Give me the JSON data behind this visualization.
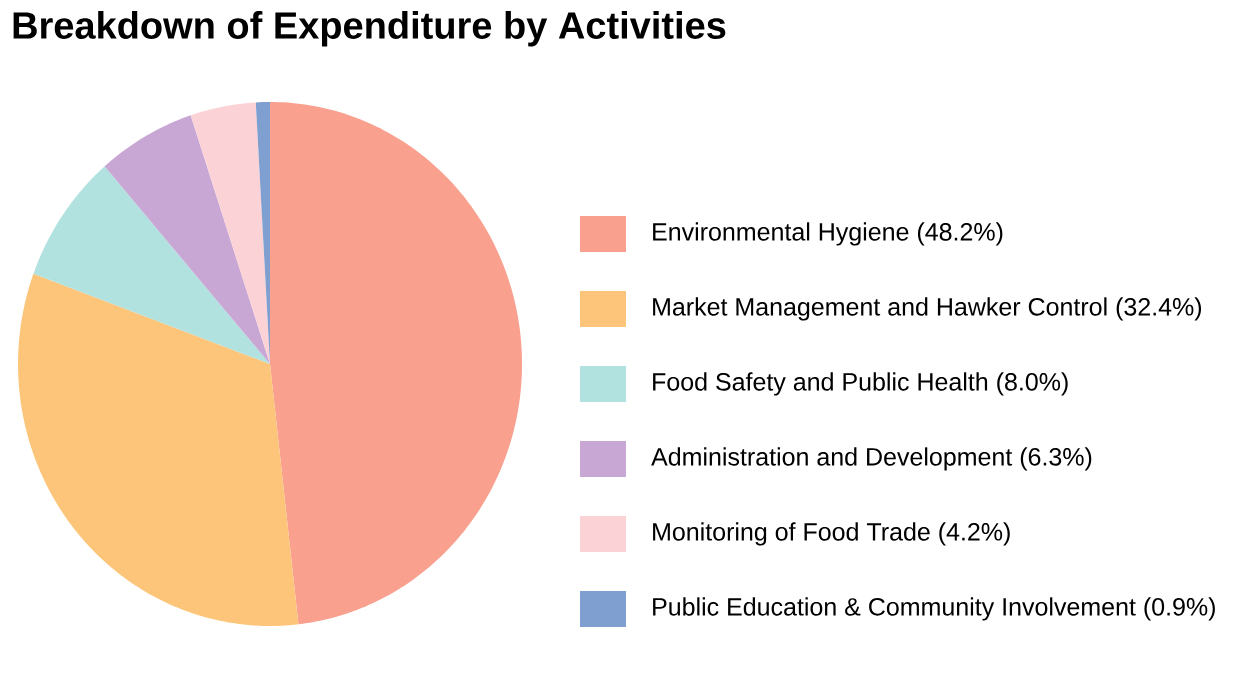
{
  "chart_data": {
    "type": "pie",
    "title": "Breakdown of Expenditure by Activities",
    "categories": [
      "Environmental Hygiene (48.2%)",
      "Market Management and Hawker Control (32.4%)",
      "Food Safety and Public Health (8.0%)",
      "Administration and Development (6.3%)",
      "Monitoring of Food Trade (4.2%)",
      "Public Education & Community Involvement (0.9%)"
    ],
    "values": [
      48.2,
      32.4,
      8.0,
      6.3,
      4.2,
      0.9
    ],
    "colors": [
      "#f9a08f",
      "#fdc57a",
      "#b2e2e0",
      "#c9a7d4",
      "#fbd3d6",
      "#7f9fd0"
    ],
    "legend": "right"
  }
}
